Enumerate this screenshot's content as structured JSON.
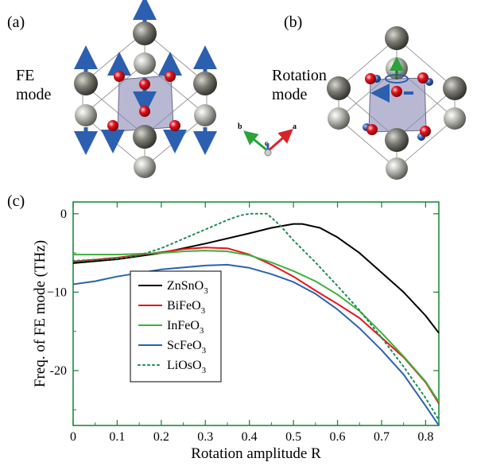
{
  "panels": {
    "a": "(a)",
    "b": "(b)",
    "c": "(c)"
  },
  "mode_labels": {
    "fe_line1": "FE",
    "fe_line2": "mode",
    "rot_line1": "Rotation",
    "rot_line2": "mode"
  },
  "axes_indicator": {
    "a": "a",
    "b": "b",
    "c": "c"
  },
  "colors": {
    "frame": "#1f8a3f",
    "ZnSnO3": "#000000",
    "BiFeO3": "#e8141a",
    "InFeO3": "#3db33a",
    "ScFeO3": "#2b62b3",
    "LiOsO3": "#1f8a56",
    "atom_dark": "#6e6e66",
    "atom_light": "#b3b3ad",
    "oxygen": "#e0141e",
    "arrow_blue": "#2d5fb0",
    "octahedron": "#8a88b4"
  },
  "chart_data": {
    "type": "line",
    "xlabel": "Rotation amplitude R",
    "ylabel": "Freq. of FE mode (THz)",
    "xlim": [
      0,
      0.83
    ],
    "ylim": [
      -27,
      1.5
    ],
    "xticks": [
      0,
      0.1,
      0.2,
      0.3,
      0.4,
      0.5,
      0.6,
      0.7,
      0.8
    ],
    "xtick_labels": [
      "0",
      "0.1",
      "0.2",
      "0.3",
      "0.4",
      "0.5",
      "0.6",
      "0.7",
      "0.8"
    ],
    "yticks": [
      0,
      -10,
      -20
    ],
    "ytick_labels": [
      "0",
      "−10",
      "-20"
    ],
    "legend_placement": "lower-left",
    "series": [
      {
        "name": "ZnSnO3",
        "label_base": "ZnSnO",
        "label_sub": "3",
        "style": "solid",
        "x": [
          0,
          0.1,
          0.2,
          0.3,
          0.4,
          0.45,
          0.5,
          0.52,
          0.56,
          0.6,
          0.65,
          0.7,
          0.75,
          0.8,
          0.83
        ],
        "y": [
          -6.3,
          -5.8,
          -5.0,
          -3.8,
          -2.5,
          -1.8,
          -1.3,
          -1.3,
          -1.8,
          -3.0,
          -5.0,
          -7.5,
          -10.0,
          -13.0,
          -15.2
        ]
      },
      {
        "name": "BiFeO3",
        "label_base": "BiFeO",
        "label_sub": "3",
        "style": "solid",
        "x": [
          0,
          0.1,
          0.2,
          0.25,
          0.3,
          0.35,
          0.4,
          0.45,
          0.5,
          0.55,
          0.6,
          0.65,
          0.7,
          0.75,
          0.8,
          0.83
        ],
        "y": [
          -6.1,
          -5.6,
          -4.9,
          -4.5,
          -4.3,
          -4.4,
          -5.2,
          -6.5,
          -8.0,
          -9.8,
          -11.5,
          -13.3,
          -15.8,
          -18.3,
          -21.5,
          -24.2
        ]
      },
      {
        "name": "InFeO3",
        "label_base": "InFeO",
        "label_sub": "3",
        "style": "solid",
        "x": [
          0,
          0.1,
          0.2,
          0.25,
          0.3,
          0.35,
          0.4,
          0.45,
          0.5,
          0.55,
          0.6,
          0.65,
          0.7,
          0.75,
          0.8,
          0.83
        ],
        "y": [
          -5.2,
          -5.2,
          -5.0,
          -4.8,
          -4.7,
          -4.8,
          -5.3,
          -6.2,
          -7.3,
          -8.6,
          -10.3,
          -12.4,
          -15.2,
          -18.2,
          -21.4,
          -24.0
        ]
      },
      {
        "name": "ScFeO3",
        "label_base": "ScFeO",
        "label_sub": "3",
        "style": "solid",
        "x": [
          0,
          0.05,
          0.1,
          0.2,
          0.3,
          0.35,
          0.4,
          0.45,
          0.5,
          0.55,
          0.6,
          0.65,
          0.7,
          0.75,
          0.8,
          0.83
        ],
        "y": [
          -9.0,
          -8.6,
          -8.0,
          -7.1,
          -6.6,
          -6.5,
          -6.9,
          -7.7,
          -8.7,
          -10.2,
          -12.2,
          -14.6,
          -17.4,
          -20.5,
          -24.5,
          -27.0
        ]
      },
      {
        "name": "LiOsO3",
        "label_base": "LiOsO",
        "label_sub": "3",
        "style": "dotted",
        "x": [
          0,
          0.1,
          0.15,
          0.2,
          0.25,
          0.3,
          0.35,
          0.38,
          0.4,
          0.42,
          0.44,
          0.47,
          0.5,
          0.55,
          0.6,
          0.65,
          0.7,
          0.75,
          0.8,
          0.83
        ],
        "y": [
          -6.0,
          -5.7,
          -5.3,
          -4.4,
          -3.2,
          -2.0,
          -0.8,
          -0.2,
          0.0,
          0.0,
          0.0,
          -1.5,
          -3.4,
          -6.2,
          -9.2,
          -12.3,
          -15.8,
          -19.5,
          -23.5,
          -26.3
        ]
      }
    ]
  }
}
